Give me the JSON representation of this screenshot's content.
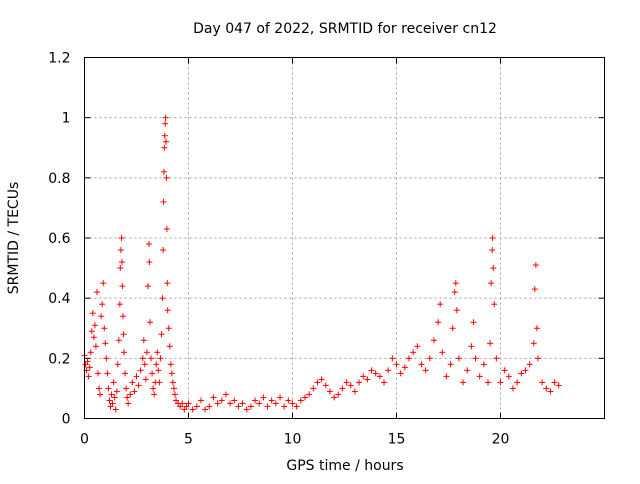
{
  "chart_data": {
    "type": "scatter",
    "title": "Day 047 of 2022, SRMTID for receiver cn12",
    "xlabel": "GPS time / hours",
    "ylabel": "SRMTID / TECUs",
    "xlim": [
      0,
      25
    ],
    "ylim": [
      0,
      1.2
    ],
    "xticks": [
      0,
      5,
      10,
      15,
      20
    ],
    "xtick_labels": [
      "0",
      "5",
      "10",
      "15",
      "20"
    ],
    "yticks": [
      0,
      0.2,
      0.4,
      0.6,
      0.8,
      1.0,
      1.2
    ],
    "ytick_labels": [
      "0",
      "0.2",
      "0.4",
      "0.6",
      "0.8",
      "1",
      "1.2"
    ],
    "grid": true,
    "marker": "+",
    "series_color": "#ff0000",
    "series": [
      {
        "name": "SRMTID cn12",
        "points": [
          [
            0.0,
            0.21
          ],
          [
            0.05,
            0.18
          ],
          [
            0.1,
            0.16
          ],
          [
            0.15,
            0.19
          ],
          [
            0.2,
            0.14
          ],
          [
            0.25,
            0.17
          ],
          [
            0.3,
            0.22
          ],
          [
            0.35,
            0.29
          ],
          [
            0.4,
            0.35
          ],
          [
            0.45,
            0.27
          ],
          [
            0.5,
            0.31
          ],
          [
            0.55,
            0.24
          ],
          [
            0.6,
            0.42
          ],
          [
            0.65,
            0.15
          ],
          [
            0.7,
            0.1
          ],
          [
            0.75,
            0.08
          ],
          [
            0.8,
            0.34
          ],
          [
            0.85,
            0.38
          ],
          [
            0.9,
            0.45
          ],
          [
            0.95,
            0.3
          ],
          [
            1.0,
            0.25
          ],
          [
            1.05,
            0.2
          ],
          [
            1.1,
            0.15
          ],
          [
            1.15,
            0.1
          ],
          [
            1.2,
            0.06
          ],
          [
            1.25,
            0.04
          ],
          [
            1.3,
            0.08
          ],
          [
            1.35,
            0.05
          ],
          [
            1.4,
            0.12
          ],
          [
            1.45,
            0.07
          ],
          [
            1.5,
            0.03
          ],
          [
            1.55,
            0.09
          ],
          [
            1.6,
            0.18
          ],
          [
            1.65,
            0.26
          ],
          [
            1.7,
            0.38
          ],
          [
            1.72,
            0.5
          ],
          [
            1.75,
            0.56
          ],
          [
            1.78,
            0.6
          ],
          [
            1.8,
            0.52
          ],
          [
            1.82,
            0.44
          ],
          [
            1.85,
            0.34
          ],
          [
            1.88,
            0.28
          ],
          [
            1.9,
            0.22
          ],
          [
            1.95,
            0.15
          ],
          [
            2.0,
            0.1
          ],
          [
            2.05,
            0.07
          ],
          [
            2.1,
            0.05
          ],
          [
            2.2,
            0.08
          ],
          [
            2.3,
            0.12
          ],
          [
            2.4,
            0.09
          ],
          [
            2.5,
            0.14
          ],
          [
            2.6,
            0.11
          ],
          [
            2.7,
            0.16
          ],
          [
            2.8,
            0.2
          ],
          [
            2.85,
            0.26
          ],
          [
            2.9,
            0.18
          ],
          [
            2.95,
            0.13
          ],
          [
            3.0,
            0.22
          ],
          [
            3.05,
            0.44
          ],
          [
            3.1,
            0.58
          ],
          [
            3.12,
            0.52
          ],
          [
            3.15,
            0.32
          ],
          [
            3.2,
            0.2
          ],
          [
            3.25,
            0.15
          ],
          [
            3.3,
            0.1
          ],
          [
            3.35,
            0.08
          ],
          [
            3.4,
            0.12
          ],
          [
            3.45,
            0.18
          ],
          [
            3.5,
            0.22
          ],
          [
            3.55,
            0.16
          ],
          [
            3.6,
            0.12
          ],
          [
            3.65,
            0.2
          ],
          [
            3.7,
            0.28
          ],
          [
            3.75,
            0.4
          ],
          [
            3.78,
            0.56
          ],
          [
            3.8,
            0.72
          ],
          [
            3.82,
            0.82
          ],
          [
            3.84,
            0.9
          ],
          [
            3.86,
            0.94
          ],
          [
            3.88,
            0.98
          ],
          [
            3.9,
            1.0
          ],
          [
            3.92,
            0.92
          ],
          [
            3.94,
            0.8
          ],
          [
            3.96,
            0.63
          ],
          [
            3.98,
            0.45
          ],
          [
            4.0,
            0.36
          ],
          [
            4.05,
            0.3
          ],
          [
            4.1,
            0.24
          ],
          [
            4.15,
            0.18
          ],
          [
            4.2,
            0.15
          ],
          [
            4.25,
            0.12
          ],
          [
            4.3,
            0.1
          ],
          [
            4.35,
            0.08
          ],
          [
            4.4,
            0.06
          ],
          [
            4.5,
            0.05
          ],
          [
            4.6,
            0.04
          ],
          [
            4.7,
            0.05
          ],
          [
            4.8,
            0.03
          ],
          [
            4.9,
            0.04
          ],
          [
            5.0,
            0.05
          ],
          [
            5.2,
            0.03
          ],
          [
            5.4,
            0.04
          ],
          [
            5.6,
            0.06
          ],
          [
            5.8,
            0.03
          ],
          [
            6.0,
            0.04
          ],
          [
            6.2,
            0.07
          ],
          [
            6.4,
            0.05
          ],
          [
            6.6,
            0.06
          ],
          [
            6.8,
            0.08
          ],
          [
            7.0,
            0.05
          ],
          [
            7.2,
            0.06
          ],
          [
            7.4,
            0.04
          ],
          [
            7.6,
            0.05
          ],
          [
            7.8,
            0.03
          ],
          [
            8.0,
            0.04
          ],
          [
            8.2,
            0.06
          ],
          [
            8.4,
            0.05
          ],
          [
            8.6,
            0.07
          ],
          [
            8.8,
            0.04
          ],
          [
            9.0,
            0.06
          ],
          [
            9.2,
            0.05
          ],
          [
            9.4,
            0.07
          ],
          [
            9.6,
            0.04
          ],
          [
            9.8,
            0.06
          ],
          [
            10.0,
            0.05
          ],
          [
            10.2,
            0.04
          ],
          [
            10.4,
            0.06
          ],
          [
            10.6,
            0.07
          ],
          [
            10.8,
            0.08
          ],
          [
            11.0,
            0.1
          ],
          [
            11.2,
            0.12
          ],
          [
            11.4,
            0.13
          ],
          [
            11.6,
            0.11
          ],
          [
            11.8,
            0.09
          ],
          [
            12.0,
            0.07
          ],
          [
            12.2,
            0.08
          ],
          [
            12.4,
            0.1
          ],
          [
            12.6,
            0.12
          ],
          [
            12.8,
            0.11
          ],
          [
            13.0,
            0.09
          ],
          [
            13.2,
            0.12
          ],
          [
            13.4,
            0.14
          ],
          [
            13.6,
            0.13
          ],
          [
            13.8,
            0.16
          ],
          [
            14.0,
            0.15
          ],
          [
            14.2,
            0.14
          ],
          [
            14.4,
            0.12
          ],
          [
            14.6,
            0.16
          ],
          [
            14.8,
            0.2
          ],
          [
            15.0,
            0.18
          ],
          [
            15.2,
            0.15
          ],
          [
            15.4,
            0.17
          ],
          [
            15.6,
            0.2
          ],
          [
            15.8,
            0.22
          ],
          [
            16.0,
            0.24
          ],
          [
            16.2,
            0.18
          ],
          [
            16.4,
            0.16
          ],
          [
            16.6,
            0.2
          ],
          [
            16.8,
            0.26
          ],
          [
            17.0,
            0.32
          ],
          [
            17.1,
            0.38
          ],
          [
            17.2,
            0.22
          ],
          [
            17.4,
            0.14
          ],
          [
            17.6,
            0.18
          ],
          [
            17.7,
            0.3
          ],
          [
            17.8,
            0.42
          ],
          [
            17.85,
            0.45
          ],
          [
            17.9,
            0.36
          ],
          [
            18.0,
            0.2
          ],
          [
            18.2,
            0.12
          ],
          [
            18.4,
            0.16
          ],
          [
            18.6,
            0.24
          ],
          [
            18.7,
            0.32
          ],
          [
            18.8,
            0.2
          ],
          [
            19.0,
            0.14
          ],
          [
            19.2,
            0.18
          ],
          [
            19.4,
            0.12
          ],
          [
            19.5,
            0.25
          ],
          [
            19.55,
            0.45
          ],
          [
            19.6,
            0.56
          ],
          [
            19.62,
            0.6
          ],
          [
            19.65,
            0.5
          ],
          [
            19.7,
            0.38
          ],
          [
            19.8,
            0.2
          ],
          [
            20.0,
            0.12
          ],
          [
            20.2,
            0.16
          ],
          [
            20.4,
            0.14
          ],
          [
            20.6,
            0.1
          ],
          [
            20.8,
            0.12
          ],
          [
            21.0,
            0.15
          ],
          [
            21.2,
            0.16
          ],
          [
            21.4,
            0.18
          ],
          [
            21.6,
            0.25
          ],
          [
            21.65,
            0.43
          ],
          [
            21.7,
            0.51
          ],
          [
            21.75,
            0.3
          ],
          [
            21.8,
            0.2
          ],
          [
            22.0,
            0.12
          ],
          [
            22.2,
            0.1
          ],
          [
            22.4,
            0.09
          ],
          [
            22.6,
            0.12
          ],
          [
            22.8,
            0.11
          ]
        ]
      }
    ]
  }
}
